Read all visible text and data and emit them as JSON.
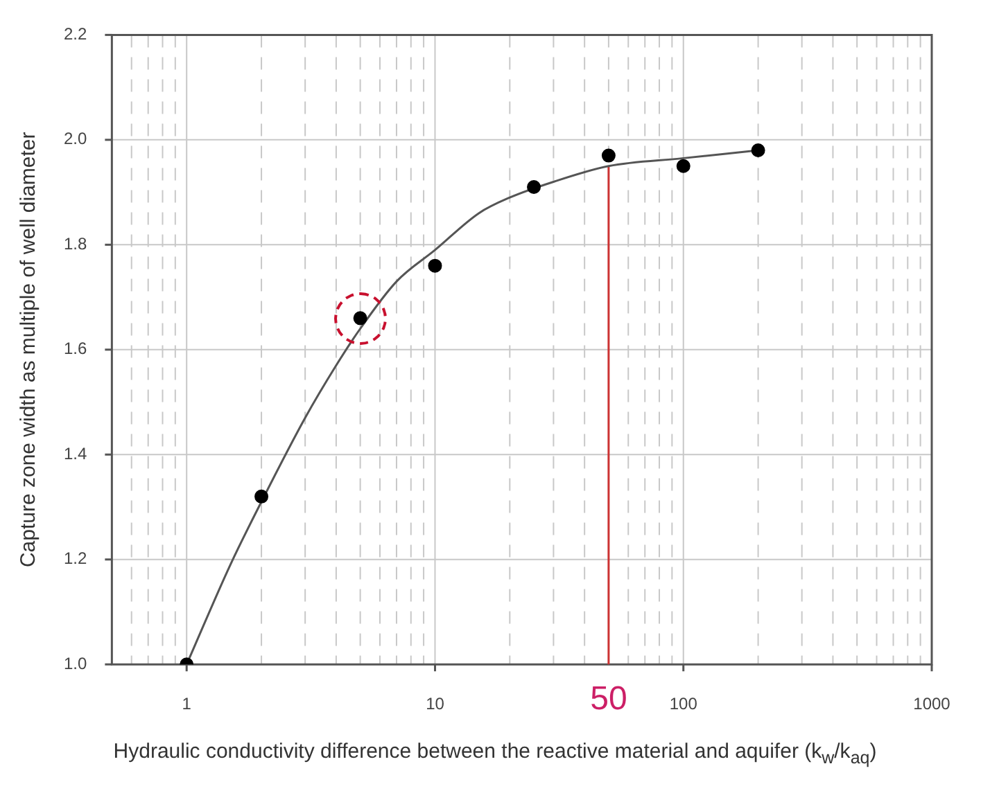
{
  "chart_data": {
    "type": "scatter",
    "xlabel": "Hydraulic conductivity difference between the reactive material and aquifer (k$_{w}$/k$_{aq}$)",
    "ylabel": "Capture zone width as multiple of well diameter",
    "log": "x",
    "xlim": [
      0.5,
      1000
    ],
    "ylim": [
      1,
      2.2
    ],
    "xticks": [
      {
        "value": 0.6,
        "label": null
      },
      {
        "value": 0.7,
        "label": null
      },
      {
        "value": 0.8,
        "label": null
      },
      {
        "value": 0.9,
        "label": null
      },
      1,
      {
        "value": 2,
        "label": null
      },
      {
        "value": 3,
        "label": null
      },
      {
        "value": 4,
        "label": null
      },
      {
        "value": 5,
        "label": null
      },
      {
        "value": 6,
        "label": null
      },
      {
        "value": 7,
        "label": null
      },
      {
        "value": 8,
        "label": null
      },
      {
        "value": 9,
        "label": null
      },
      10,
      {
        "value": 20,
        "label": null
      },
      {
        "value": 30,
        "label": null
      },
      {
        "value": 40,
        "label": null
      },
      {
        "value": 50,
        "label": null
      },
      {
        "value": 60,
        "label": null
      },
      {
        "value": 70,
        "label": null
      },
      {
        "value": 80,
        "label": null
      },
      {
        "value": 90,
        "label": null
      },
      100,
      {
        "value": 200,
        "label": null
      },
      {
        "value": 300,
        "label": null
      },
      {
        "value": 400,
        "label": null
      },
      {
        "value": 500,
        "label": null
      },
      {
        "value": 600,
        "label": null
      },
      {
        "value": 700,
        "label": null
      },
      {
        "value": 800,
        "label": null
      },
      {
        "value": 900,
        "label": null
      },
      1000
    ],
    "yticks": [
      {
        "value": 1,
        "label": "1.0"
      },
      1.2,
      1.4,
      1.6,
      1.8,
      {
        "value": 2,
        "label": "2.0"
      },
      2.2
    ],
    "grid": true,
    "legend": false,
    "marker": "circle",
    "series": [
      {
        "color": "#000000",
        "x": [
          1,
          2,
          5,
          10,
          25,
          50,
          100,
          200
        ],
        "values": [
          1.0,
          1.32,
          1.66,
          1.76,
          1.91,
          1.97,
          1.95,
          1.98
        ]
      },
      {
        "type": "line",
        "color": "#555555",
        "marker": "none",
        "line_style": "solid",
        "x": [
          1,
          1.5,
          2,
          3,
          4,
          5,
          7,
          10,
          15,
          20,
          30,
          50,
          100,
          200
        ],
        "values": [
          1.0,
          1.19,
          1.31,
          1.47,
          1.57,
          1.64,
          1.73,
          1.79,
          1.86,
          1.89,
          1.92,
          1.95,
          1.965,
          1.98
        ]
      }
    ],
    "ref_lines": [
      {
        "axis": "x",
        "value": 50,
        "label": "50",
        "color": "#cc3333"
      }
    ]
  }
}
